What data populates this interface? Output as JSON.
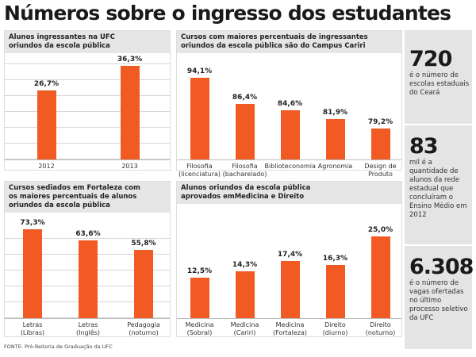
{
  "header": {
    "title": "Números sobre o ingresso dos estudantes"
  },
  "chart_data": [
    {
      "type": "bar",
      "title": "Alunos ingressantes na UFC\noriundos da escola pública",
      "categories": [
        "2012",
        "2013"
      ],
      "values": [
        26.7,
        36.3
      ],
      "value_labels": [
        "26,7%",
        "36,3%"
      ],
      "color": "#f15a22",
      "ylim": [
        0,
        38
      ],
      "grid": true
    },
    {
      "type": "bar",
      "title": "Cursos com maiores percentuais de ingressantes\noriundos da escola pública são do Campus Cariri",
      "categories": [
        "Filosofia\n(licenciatura)",
        "Filosofia\n(bacharelado)",
        "Biblioteconomia",
        "Agronomia",
        "Design de\nProduto"
      ],
      "values": [
        94.1,
        86.4,
        84.6,
        81.9,
        79.2
      ],
      "value_labels": [
        "94,1%",
        "86,4%",
        "84,6%",
        "81,9%",
        "79,2%"
      ],
      "color": "#f15a22",
      "ylim": [
        70,
        95
      ],
      "grid": false
    },
    {
      "type": "bar",
      "title": "Cursos sediados em Fortaleza com\nos maiores percentuais de alunos\noriundos da escola pública",
      "categories": [
        "Letras\n(Libras)",
        "Letras\n(Inglês)",
        "Pedagogia\n(noturno)"
      ],
      "values": [
        73.3,
        63.6,
        55.8
      ],
      "value_labels": [
        "73,3%",
        "63,6%",
        "55,8%"
      ],
      "color": "#f15a22",
      "ylim": [
        0,
        75
      ],
      "grid": true
    },
    {
      "type": "bar",
      "title": "Alunos oriundos da escola pública\naprovados emMedicina e Direito",
      "categories": [
        "Medicina\n(Sobral)",
        "Medicina\n(Cariri)",
        "Medicina\n(Fortaleza)",
        "Direito\n(diurno)",
        "Direito\n(noturno)"
      ],
      "values": [
        12.5,
        14.3,
        17.4,
        16.3,
        25.0
      ],
      "value_labels": [
        "12,5%",
        "14,3%",
        "17,4%",
        "16,3%",
        "25,0%"
      ],
      "color": "#f15a22",
      "ylim": [
        0,
        26
      ],
      "grid": false
    }
  ],
  "facts": [
    {
      "number": "720",
      "text": "é o número de escolas estaduais do Ceará"
    },
    {
      "number": "83",
      "text": "mil é a quantidade de alunos da rede estadual que concluíram o Ensino Médio em 2012"
    },
    {
      "number": "6.308",
      "text": "é o número de vagas ofertadas no último processo seletivo da UFC"
    }
  ],
  "source": "FONTE: Pró-Reitoria de Graduação da UFC"
}
